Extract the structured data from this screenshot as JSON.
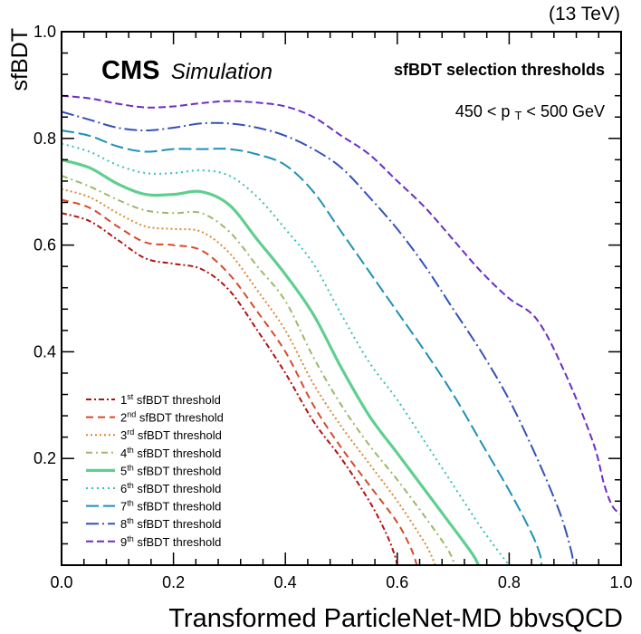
{
  "chart_data": {
    "type": "line",
    "energy_label": "(13 TeV)",
    "experiment": "CMS",
    "experiment_suffix": "Simulation",
    "title": "sfBDT selection thresholds",
    "pt_range": {
      "low": "450",
      "high": "500 GeV",
      "var": "p",
      "sub": "T"
    },
    "xlabel": "Transformed ParticleNet-MD bbvsQCD",
    "ylabel": "sfBDT",
    "xlim": [
      0.0,
      1.0
    ],
    "ylim": [
      0.0,
      1.0
    ],
    "xticks": [
      "0.0",
      "0.2",
      "0.4",
      "0.6",
      "0.8",
      "1.0"
    ],
    "yticks": [
      "0.2",
      "0.4",
      "0.6",
      "0.8",
      "1.0"
    ],
    "legend_position": "bottom-left",
    "legend_suffix": "sfBDT threshold",
    "series": [
      {
        "ordinal": "1",
        "sup": "st",
        "color": "#b3120f",
        "dash": "6,3,2,3",
        "width": 2,
        "x": [
          0.0,
          0.05,
          0.1,
          0.15,
          0.2,
          0.25,
          0.3,
          0.35,
          0.4,
          0.45,
          0.5,
          0.55,
          0.58,
          0.595,
          0.6
        ],
        "y": [
          0.66,
          0.645,
          0.61,
          0.575,
          0.565,
          0.555,
          0.515,
          0.44,
          0.36,
          0.27,
          0.2,
          0.12,
          0.06,
          0.02,
          0.0
        ]
      },
      {
        "ordinal": "2",
        "sup": "nd",
        "color": "#d64a2b",
        "dash": "8,5",
        "width": 2,
        "x": [
          0.0,
          0.05,
          0.1,
          0.15,
          0.2,
          0.25,
          0.3,
          0.35,
          0.4,
          0.45,
          0.5,
          0.55,
          0.6,
          0.625,
          0.635
        ],
        "y": [
          0.685,
          0.67,
          0.635,
          0.605,
          0.6,
          0.59,
          0.545,
          0.475,
          0.4,
          0.3,
          0.22,
          0.15,
          0.08,
          0.03,
          0.0
        ]
      },
      {
        "ordinal": "3",
        "sup": "rd",
        "color": "#d98a35",
        "dash": "2,3",
        "width": 2,
        "x": [
          0.0,
          0.05,
          0.1,
          0.15,
          0.2,
          0.25,
          0.3,
          0.35,
          0.4,
          0.45,
          0.5,
          0.55,
          0.6,
          0.65,
          0.668
        ],
        "y": [
          0.705,
          0.69,
          0.66,
          0.635,
          0.63,
          0.625,
          0.585,
          0.515,
          0.44,
          0.34,
          0.26,
          0.19,
          0.12,
          0.04,
          0.0
        ]
      },
      {
        "ordinal": "4",
        "sup": "th",
        "color": "#9bb96a",
        "dash": "7,4,2,4",
        "width": 2,
        "x": [
          0.0,
          0.05,
          0.1,
          0.15,
          0.2,
          0.25,
          0.3,
          0.35,
          0.4,
          0.45,
          0.5,
          0.55,
          0.6,
          0.65,
          0.69,
          0.703
        ],
        "y": [
          0.73,
          0.71,
          0.685,
          0.665,
          0.66,
          0.66,
          0.625,
          0.56,
          0.495,
          0.39,
          0.3,
          0.225,
          0.16,
          0.09,
          0.03,
          0.0
        ]
      },
      {
        "ordinal": "5",
        "sup": "th",
        "color": "#5fcf8f",
        "dash": "",
        "width": 3.2,
        "x": [
          0.0,
          0.05,
          0.1,
          0.15,
          0.2,
          0.25,
          0.3,
          0.35,
          0.4,
          0.45,
          0.5,
          0.55,
          0.6,
          0.65,
          0.7,
          0.735,
          0.745
        ],
        "y": [
          0.76,
          0.745,
          0.715,
          0.695,
          0.695,
          0.7,
          0.675,
          0.61,
          0.545,
          0.47,
          0.37,
          0.28,
          0.21,
          0.14,
          0.07,
          0.02,
          0.0
        ]
      },
      {
        "ordinal": "6",
        "sup": "th",
        "color": "#35c0b8",
        "dash": "2,4",
        "width": 2,
        "x": [
          0.0,
          0.05,
          0.1,
          0.15,
          0.2,
          0.25,
          0.3,
          0.35,
          0.4,
          0.45,
          0.5,
          0.55,
          0.6,
          0.65,
          0.7,
          0.75,
          0.785,
          0.8
        ],
        "y": [
          0.79,
          0.775,
          0.75,
          0.735,
          0.735,
          0.74,
          0.73,
          0.69,
          0.63,
          0.565,
          0.47,
          0.38,
          0.31,
          0.23,
          0.15,
          0.07,
          0.02,
          0.0
        ]
      },
      {
        "ordinal": "7",
        "sup": "th",
        "color": "#1e8fb8",
        "dash": "14,5",
        "width": 2,
        "x": [
          0.0,
          0.05,
          0.1,
          0.15,
          0.2,
          0.25,
          0.3,
          0.35,
          0.4,
          0.45,
          0.5,
          0.55,
          0.6,
          0.65,
          0.7,
          0.75,
          0.8,
          0.84,
          0.855,
          0.858
        ],
        "y": [
          0.815,
          0.805,
          0.785,
          0.775,
          0.78,
          0.78,
          0.78,
          0.77,
          0.75,
          0.7,
          0.625,
          0.55,
          0.475,
          0.4,
          0.32,
          0.23,
          0.14,
          0.06,
          0.02,
          0.0
        ]
      },
      {
        "ordinal": "8",
        "sup": "th",
        "color": "#3352b8",
        "dash": "14,4,2,4",
        "width": 2,
        "x": [
          0.0,
          0.05,
          0.1,
          0.15,
          0.2,
          0.25,
          0.3,
          0.35,
          0.4,
          0.45,
          0.5,
          0.55,
          0.6,
          0.65,
          0.7,
          0.75,
          0.8,
          0.85,
          0.89,
          0.91,
          0.915
        ],
        "y": [
          0.85,
          0.835,
          0.82,
          0.815,
          0.82,
          0.828,
          0.828,
          0.82,
          0.805,
          0.78,
          0.745,
          0.69,
          0.63,
          0.56,
          0.48,
          0.4,
          0.31,
          0.2,
          0.1,
          0.03,
          0.0
        ]
      },
      {
        "ordinal": "9",
        "sup": "th",
        "color": "#6a2ec8",
        "dash": "8,4",
        "width": 2,
        "x": [
          0.0,
          0.05,
          0.1,
          0.15,
          0.2,
          0.25,
          0.3,
          0.35,
          0.4,
          0.45,
          0.5,
          0.55,
          0.6,
          0.65,
          0.7,
          0.75,
          0.8,
          0.85,
          0.9,
          0.95,
          0.97,
          0.985,
          1.0
        ],
        "y": [
          0.88,
          0.875,
          0.865,
          0.858,
          0.86,
          0.866,
          0.87,
          0.867,
          0.86,
          0.84,
          0.805,
          0.77,
          0.72,
          0.67,
          0.61,
          0.55,
          0.5,
          0.46,
          0.36,
          0.23,
          0.15,
          0.11,
          0.095
        ]
      }
    ]
  }
}
